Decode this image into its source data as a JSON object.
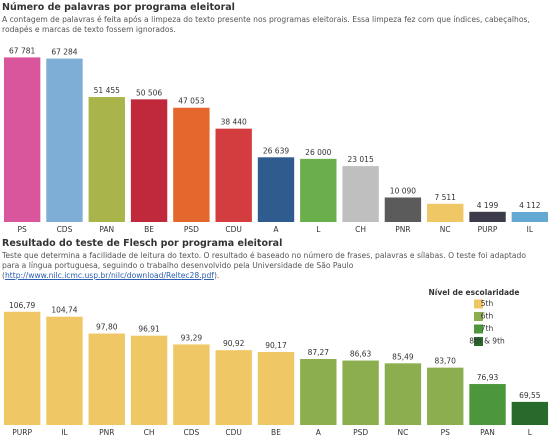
{
  "chart_data": [
    {
      "type": "bar",
      "title": "Número de palavras por programa eleitoral",
      "subtitle": "A contagem de palavras é feita após a limpeza do texto presente nos programas eleitorais. Essa limpeza fez com que índices, cabeçalhos, rodapés e marcas de texto fossem ignorados.",
      "categories": [
        "PS",
        "CDS",
        "PAN",
        "BE",
        "PSD",
        "CDU",
        "A",
        "L",
        "CH",
        "PNR",
        "NC",
        "PURP",
        "IL"
      ],
      "values": [
        67781,
        67284,
        51455,
        50506,
        47053,
        38440,
        26639,
        26000,
        23015,
        10090,
        7511,
        4199,
        4112
      ],
      "value_labels": [
        "67 781",
        "67 284",
        "51 455",
        "50 506",
        "47 053",
        "38 440",
        "26 639",
        "26 000",
        "23 015",
        "10 090",
        "7 511",
        "4 199",
        "4 112"
      ],
      "colors": [
        "#d9569c",
        "#7eaed5",
        "#a9b54b",
        "#c0283c",
        "#e4672e",
        "#d43d3f",
        "#2f5b8f",
        "#6aaf4c",
        "#bfbfbf",
        "#5b5b5b",
        "#f0c765",
        "#3b3b4b",
        "#63a9d4"
      ],
      "ylim": [
        0,
        70000
      ]
    },
    {
      "type": "grouped-bar",
      "title": "Resultado do teste de Flesch por programa eleitoral",
      "subtitle": "Teste que determina a facilidade de leitura do texto. O resultado é baseado no número de frases, palavras e sílabas. O teste foi adaptado para a língua portuguesa, seguindo o trabalho desenvolvido pela Universidade de São Paulo (",
      "link": "http://www.nilc.icmc.usp.br/nilc/download/Reltec28.pdf",
      "subtitle_end": ").",
      "legend_title": "Nível de escolaridade",
      "categories": [
        "PURP",
        "IL",
        "PNR",
        "CH",
        "CDS",
        "CDU",
        "BE",
        "A",
        "PSD",
        "NC",
        "PS",
        "PAN",
        "L"
      ],
      "series": [
        {
          "name": "5th",
          "color": "#f0c765",
          "values": [
            106.79,
            104.74,
            97.8,
            96.91,
            93.29,
            90.92,
            90.17,
            null,
            null,
            null,
            null,
            null,
            null
          ],
          "value_labels": [
            "106,79",
            "104,74",
            "97,80",
            "96,91",
            "93,29",
            "90,92",
            "90,17",
            null,
            null,
            null,
            null,
            null,
            null
          ]
        },
        {
          "name": "6th",
          "color": "#8cae4f",
          "values": [
            null,
            null,
            null,
            null,
            null,
            null,
            null,
            87.27,
            86.63,
            85.49,
            83.7,
            null,
            null
          ],
          "value_labels": [
            null,
            null,
            null,
            null,
            null,
            null,
            null,
            "87,27",
            "86,63",
            "85,49",
            "83,70",
            null,
            null
          ]
        },
        {
          "name": "7th",
          "color": "#4c973b",
          "values": [
            null,
            null,
            null,
            null,
            null,
            null,
            null,
            null,
            null,
            null,
            null,
            76.93,
            null
          ],
          "value_labels": [
            null,
            null,
            null,
            null,
            null,
            null,
            null,
            null,
            null,
            null,
            null,
            "76,93",
            null
          ]
        },
        {
          "name": "8th & 9th",
          "color": "#276a2c",
          "values": [
            null,
            null,
            null,
            null,
            null,
            null,
            null,
            null,
            null,
            null,
            null,
            null,
            69.55
          ],
          "value_labels": [
            null,
            null,
            null,
            null,
            null,
            null,
            null,
            null,
            null,
            null,
            null,
            null,
            "69,55"
          ]
        }
      ],
      "ylim": [
        60,
        110
      ]
    }
  ]
}
